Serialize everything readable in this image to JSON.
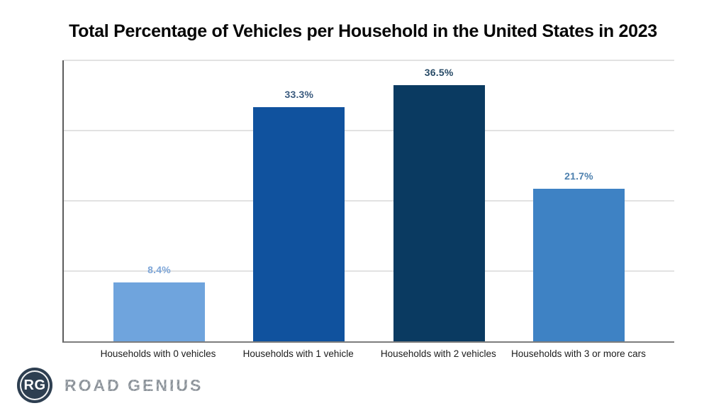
{
  "title": "Total Percentage of Vehicles per Household in the United States in 2023",
  "chart_data": {
    "type": "bar",
    "title": "Total Percentage of Vehicles per Household in the United States in 2023",
    "categories": [
      "Households with 0 vehicles",
      "Households with 1 vehicle",
      "Households with 2 vehicles",
      "Households with 3 or more cars"
    ],
    "values": [
      8.4,
      33.3,
      36.5,
      21.7
    ],
    "value_labels": [
      "8.4%",
      "33.3%",
      "36.5%",
      "21.7%"
    ],
    "bar_colors": [
      "#6FA4DD",
      "#10529E",
      "#0A3A61",
      "#3E82C4"
    ],
    "value_label_colors": [
      "#7EA6D8",
      "#3A5A7E",
      "#274A66",
      "#4D80AE"
    ],
    "xlabel": "",
    "ylabel": "",
    "ylim": [
      0,
      40
    ],
    "gridline_values": [
      10,
      20,
      30,
      40
    ],
    "grid": true,
    "legend_position": "none",
    "y_tick_labels_visible": false
  },
  "branding": {
    "monogram": "RG",
    "name": "ROAD GENIUS",
    "badge_color": "#2E3F51",
    "name_color": "#8F969C"
  },
  "colors": {
    "background": "#FFFFFF",
    "title_text": "#060606",
    "axis_line": "#5C5C5C",
    "gridline": "#E2E2E2",
    "xaxis_label_text": "#1B1B1B"
  }
}
